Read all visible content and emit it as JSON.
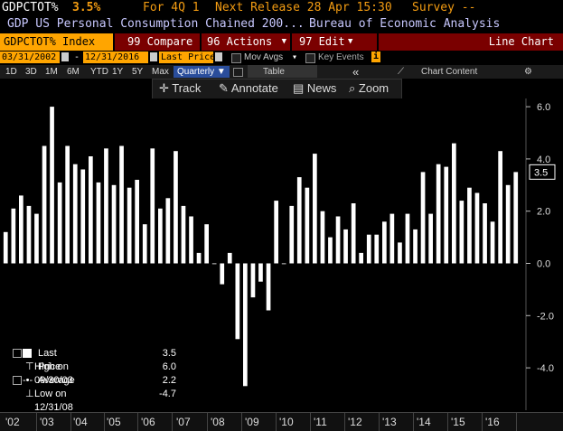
{
  "header": {
    "ticker": "GDPCTOT%",
    "value": "3.5%",
    "period": "For 4Q 1",
    "next_release": "Next Release 28 Apr 15:30",
    "survey": "Survey --",
    "description": "GDP US Personal Consumption Chained 200...",
    "source": "Bureau of Economic Analysis"
  },
  "toolbar": {
    "security": "GDPCTOT% Index",
    "compare": "99 Compare",
    "actions": "96 Actions",
    "edit": "97 Edit",
    "chart_type": "Line Chart"
  },
  "range": {
    "start": "03/31/2002",
    "end": "12/31/2016",
    "field": "Last Price",
    "mov_avgs": "Mov Avgs",
    "key_events": "Key Events"
  },
  "periods": {
    "items": [
      "1D",
      "3D",
      "1M",
      "6M",
      "YTD",
      "1Y",
      "5Y",
      "Max"
    ],
    "frequency": "Quarterly",
    "table": "Table",
    "chart_content": "Chart Content"
  },
  "chart_toolbar": {
    "track": "Track",
    "annotate": "Annotate",
    "news": "News",
    "zoom": "Zoom"
  },
  "legend": {
    "last_price_label": "Last Price",
    "last_price_value": "3.5",
    "high_label": "High on 09/30/03",
    "high_value": "6.0",
    "avg_label": "Average",
    "avg_value": "2.2",
    "low_label": "Low on 12/31/08",
    "low_value": "-4.7"
  },
  "chart_data": {
    "type": "bar",
    "ylim": [
      -5.5,
      7
    ],
    "yticks": [
      "6.0",
      "4.0",
      "2.0",
      "0.0",
      "-2.0",
      "-4.0"
    ],
    "ytick_values": [
      6,
      4,
      2,
      0,
      -2,
      -4
    ],
    "last_label": "3.5",
    "xticks": [
      "'02",
      "'03",
      "'04",
      "'05",
      "'06",
      "'07",
      "'08",
      "'09",
      "'10",
      "'11",
      "'12",
      "'13",
      "'14",
      "'15",
      "'16"
    ],
    "values": [
      1.2,
      2.1,
      2.6,
      2.2,
      1.9,
      4.5,
      6.0,
      3.1,
      4.5,
      3.8,
      3.6,
      4.1,
      3.1,
      4.4,
      3.0,
      4.5,
      2.9,
      3.2,
      1.5,
      4.4,
      2.1,
      2.5,
      4.3,
      2.2,
      1.8,
      0.4,
      1.5,
      0.0,
      -0.8,
      0.4,
      -2.9,
      -4.7,
      -1.3,
      -0.7,
      -1.8,
      2.4,
      0.0,
      2.2,
      3.3,
      2.9,
      4.2,
      2.0,
      1.0,
      1.8,
      1.3,
      2.3,
      0.4,
      1.1,
      1.1,
      1.6,
      1.9,
      0.8,
      1.9,
      1.3,
      3.5,
      1.9,
      3.8,
      3.7,
      4.6,
      2.4,
      2.9,
      2.7,
      2.3,
      1.6,
      4.3,
      3.0,
      3.5
    ]
  }
}
